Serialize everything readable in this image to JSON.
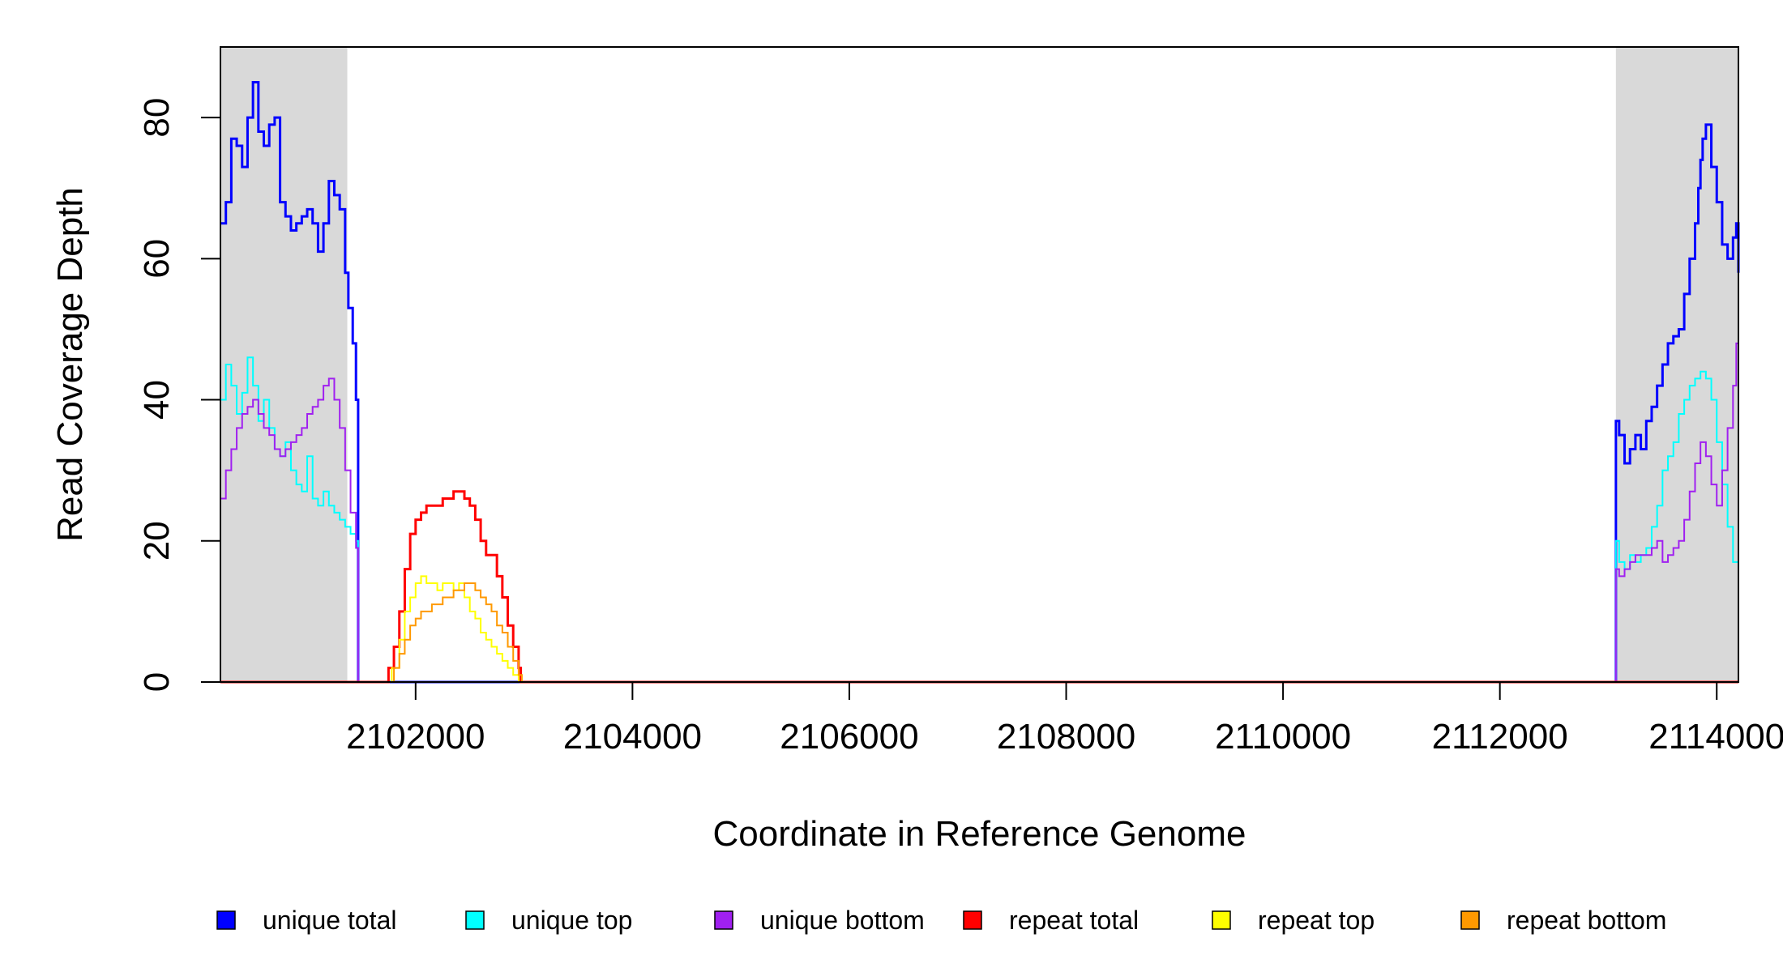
{
  "chart_data": {
    "type": "line",
    "title": "",
    "xlabel": "Coordinate in Reference Genome",
    "ylabel": "Read Coverage Depth",
    "xlim": [
      2100200,
      2114200
    ],
    "ylim": [
      0,
      90
    ],
    "x_ticks": [
      2102000,
      2104000,
      2106000,
      2108000,
      2110000,
      2112000,
      2114000
    ],
    "x_tick_labels": [
      "2102000",
      "2104000",
      "2106000",
      "2108000",
      "2110000",
      "2112000",
      "2114000"
    ],
    "y_ticks": [
      0,
      20,
      40,
      60,
      80
    ],
    "y_tick_labels": [
      "0",
      "20",
      "40",
      "60",
      "80"
    ],
    "grid": false,
    "legend_position": "bottom",
    "shaded_regions": [
      {
        "x": [
          2100200,
          2101370
        ],
        "color": "#d9d9d9"
      },
      {
        "x": [
          2113070,
          2114200
        ],
        "color": "#d9d9d9"
      }
    ],
    "series": [
      {
        "name": "unique total",
        "color": "#0000ff",
        "width": 3,
        "points": [
          [
            2100200,
            65
          ],
          [
            2100250,
            68
          ],
          [
            2100300,
            77
          ],
          [
            2100350,
            76
          ],
          [
            2100400,
            73
          ],
          [
            2100450,
            80
          ],
          [
            2100500,
            85
          ],
          [
            2100550,
            78
          ],
          [
            2100600,
            76
          ],
          [
            2100650,
            79
          ],
          [
            2100700,
            80
          ],
          [
            2100750,
            68
          ],
          [
            2100800,
            66
          ],
          [
            2100850,
            64
          ],
          [
            2100900,
            65
          ],
          [
            2100950,
            66
          ],
          [
            2101000,
            67
          ],
          [
            2101050,
            65
          ],
          [
            2101100,
            61
          ],
          [
            2101150,
            65
          ],
          [
            2101200,
            71
          ],
          [
            2101250,
            69
          ],
          [
            2101300,
            67
          ],
          [
            2101350,
            58
          ],
          [
            2101380,
            53
          ],
          [
            2101420,
            48
          ],
          [
            2101450,
            40
          ],
          [
            2101470,
            0
          ],
          [
            2101500,
            0
          ],
          [
            2113050,
            0
          ],
          [
            2113070,
            37
          ],
          [
            2113100,
            35
          ],
          [
            2113150,
            31
          ],
          [
            2113200,
            33
          ],
          [
            2113250,
            35
          ],
          [
            2113300,
            33
          ],
          [
            2113350,
            37
          ],
          [
            2113400,
            39
          ],
          [
            2113450,
            42
          ],
          [
            2113500,
            45
          ],
          [
            2113550,
            48
          ],
          [
            2113600,
            49
          ],
          [
            2113650,
            50
          ],
          [
            2113700,
            55
          ],
          [
            2113750,
            60
          ],
          [
            2113800,
            65
          ],
          [
            2113830,
            70
          ],
          [
            2113850,
            74
          ],
          [
            2113870,
            77
          ],
          [
            2113900,
            79
          ],
          [
            2113950,
            73
          ],
          [
            2114000,
            68
          ],
          [
            2114050,
            62
          ],
          [
            2114100,
            60
          ],
          [
            2114150,
            63
          ],
          [
            2114180,
            65
          ],
          [
            2114200,
            58
          ]
        ]
      },
      {
        "name": "unique top",
        "color": "#00ffff",
        "width": 2,
        "points": [
          [
            2100200,
            40
          ],
          [
            2100250,
            45
          ],
          [
            2100300,
            42
          ],
          [
            2100350,
            38
          ],
          [
            2100400,
            41
          ],
          [
            2100450,
            46
          ],
          [
            2100500,
            42
          ],
          [
            2100550,
            37
          ],
          [
            2100600,
            40
          ],
          [
            2100650,
            36
          ],
          [
            2100700,
            33
          ],
          [
            2100750,
            32
          ],
          [
            2100800,
            34
          ],
          [
            2100850,
            30
          ],
          [
            2100900,
            28
          ],
          [
            2100950,
            27
          ],
          [
            2101000,
            32
          ],
          [
            2101050,
            26
          ],
          [
            2101100,
            25
          ],
          [
            2101150,
            27
          ],
          [
            2101200,
            25
          ],
          [
            2101250,
            24
          ],
          [
            2101300,
            23
          ],
          [
            2101350,
            22
          ],
          [
            2101400,
            21
          ],
          [
            2101450,
            20
          ],
          [
            2101470,
            0
          ],
          [
            2101500,
            0
          ],
          [
            2113050,
            0
          ],
          [
            2113070,
            20
          ],
          [
            2113100,
            17
          ],
          [
            2113150,
            16
          ],
          [
            2113200,
            18
          ],
          [
            2113250,
            17
          ],
          [
            2113300,
            18
          ],
          [
            2113350,
            19
          ],
          [
            2113400,
            22
          ],
          [
            2113450,
            25
          ],
          [
            2113500,
            30
          ],
          [
            2113550,
            32
          ],
          [
            2113600,
            34
          ],
          [
            2113650,
            38
          ],
          [
            2113700,
            40
          ],
          [
            2113750,
            42
          ],
          [
            2113800,
            43
          ],
          [
            2113850,
            44
          ],
          [
            2113900,
            43
          ],
          [
            2113950,
            40
          ],
          [
            2114000,
            34
          ],
          [
            2114050,
            28
          ],
          [
            2114100,
            22
          ],
          [
            2114150,
            17
          ],
          [
            2114200,
            14
          ]
        ]
      },
      {
        "name": "unique bottom",
        "color": "#a020f0",
        "width": 2,
        "points": [
          [
            2100200,
            26
          ],
          [
            2100250,
            30
          ],
          [
            2100300,
            33
          ],
          [
            2100350,
            36
          ],
          [
            2100400,
            38
          ],
          [
            2100450,
            39
          ],
          [
            2100500,
            40
          ],
          [
            2100550,
            38
          ],
          [
            2100600,
            36
          ],
          [
            2100650,
            35
          ],
          [
            2100700,
            33
          ],
          [
            2100750,
            32
          ],
          [
            2100800,
            33
          ],
          [
            2100850,
            34
          ],
          [
            2100900,
            35
          ],
          [
            2100950,
            36
          ],
          [
            2101000,
            38
          ],
          [
            2101050,
            39
          ],
          [
            2101100,
            40
          ],
          [
            2101150,
            42
          ],
          [
            2101200,
            43
          ],
          [
            2101250,
            40
          ],
          [
            2101300,
            36
          ],
          [
            2101350,
            30
          ],
          [
            2101400,
            24
          ],
          [
            2101450,
            19
          ],
          [
            2101470,
            0
          ],
          [
            2101500,
            0
          ],
          [
            2113050,
            0
          ],
          [
            2113070,
            16
          ],
          [
            2113100,
            15
          ],
          [
            2113150,
            16
          ],
          [
            2113200,
            17
          ],
          [
            2113250,
            18
          ],
          [
            2113300,
            18
          ],
          [
            2113350,
            18
          ],
          [
            2113400,
            19
          ],
          [
            2113450,
            20
          ],
          [
            2113500,
            17
          ],
          [
            2113550,
            18
          ],
          [
            2113600,
            19
          ],
          [
            2113650,
            20
          ],
          [
            2113700,
            23
          ],
          [
            2113750,
            27
          ],
          [
            2113800,
            31
          ],
          [
            2113850,
            34
          ],
          [
            2113900,
            32
          ],
          [
            2113950,
            28
          ],
          [
            2114000,
            25
          ],
          [
            2114050,
            30
          ],
          [
            2114100,
            36
          ],
          [
            2114150,
            42
          ],
          [
            2114180,
            48
          ],
          [
            2114200,
            46
          ]
        ]
      },
      {
        "name": "repeat total",
        "color": "#ff0000",
        "width": 3,
        "points": [
          [
            2100200,
            0
          ],
          [
            2101700,
            0
          ],
          [
            2101750,
            2
          ],
          [
            2101800,
            5
          ],
          [
            2101850,
            10
          ],
          [
            2101900,
            16
          ],
          [
            2101950,
            21
          ],
          [
            2102000,
            23
          ],
          [
            2102050,
            24
          ],
          [
            2102100,
            25
          ],
          [
            2102150,
            25
          ],
          [
            2102200,
            25
          ],
          [
            2102250,
            26
          ],
          [
            2102300,
            26
          ],
          [
            2102350,
            27
          ],
          [
            2102400,
            27
          ],
          [
            2102450,
            26
          ],
          [
            2102500,
            25
          ],
          [
            2102550,
            23
          ],
          [
            2102600,
            20
          ],
          [
            2102650,
            18
          ],
          [
            2102700,
            18
          ],
          [
            2102750,
            15
          ],
          [
            2102800,
            12
          ],
          [
            2102850,
            8
          ],
          [
            2102900,
            5
          ],
          [
            2102950,
            2
          ],
          [
            2102970,
            0
          ],
          [
            2114200,
            0
          ]
        ]
      },
      {
        "name": "repeat top",
        "color": "#ffff00",
        "width": 2,
        "points": [
          [
            2100200,
            0
          ],
          [
            2101720,
            0
          ],
          [
            2101780,
            2
          ],
          [
            2101850,
            6
          ],
          [
            2101900,
            10
          ],
          [
            2101950,
            12
          ],
          [
            2102000,
            14
          ],
          [
            2102050,
            15
          ],
          [
            2102100,
            14
          ],
          [
            2102150,
            14
          ],
          [
            2102200,
            13
          ],
          [
            2102250,
            14
          ],
          [
            2102300,
            14
          ],
          [
            2102350,
            13
          ],
          [
            2102400,
            14
          ],
          [
            2102450,
            12
          ],
          [
            2102500,
            10
          ],
          [
            2102550,
            9
          ],
          [
            2102600,
            7
          ],
          [
            2102650,
            6
          ],
          [
            2102700,
            5
          ],
          [
            2102750,
            4
          ],
          [
            2102800,
            3
          ],
          [
            2102850,
            2
          ],
          [
            2102900,
            1
          ],
          [
            2102950,
            0
          ],
          [
            2114200,
            0
          ]
        ]
      },
      {
        "name": "repeat bottom",
        "color": "#ff9900",
        "width": 2,
        "points": [
          [
            2100200,
            0
          ],
          [
            2101720,
            0
          ],
          [
            2101800,
            2
          ],
          [
            2101850,
            4
          ],
          [
            2101900,
            6
          ],
          [
            2101950,
            8
          ],
          [
            2102000,
            9
          ],
          [
            2102050,
            10
          ],
          [
            2102100,
            10
          ],
          [
            2102150,
            11
          ],
          [
            2102200,
            11
          ],
          [
            2102250,
            12
          ],
          [
            2102300,
            12
          ],
          [
            2102350,
            13
          ],
          [
            2102400,
            13
          ],
          [
            2102450,
            14
          ],
          [
            2102500,
            14
          ],
          [
            2102550,
            13
          ],
          [
            2102600,
            12
          ],
          [
            2102650,
            11
          ],
          [
            2102700,
            10
          ],
          [
            2102750,
            8
          ],
          [
            2102800,
            7
          ],
          [
            2102850,
            5
          ],
          [
            2102900,
            3
          ],
          [
            2102950,
            1
          ],
          [
            2102980,
            0
          ],
          [
            2114200,
            0
          ]
        ]
      }
    ],
    "legend": [
      {
        "label": "unique total",
        "color": "#0000ff"
      },
      {
        "label": "unique top",
        "color": "#00ffff"
      },
      {
        "label": "unique bottom",
        "color": "#a020f0"
      },
      {
        "label": "repeat total",
        "color": "#ff0000"
      },
      {
        "label": "repeat top",
        "color": "#ffff00"
      },
      {
        "label": "repeat bottom",
        "color": "#ff9900"
      }
    ]
  }
}
